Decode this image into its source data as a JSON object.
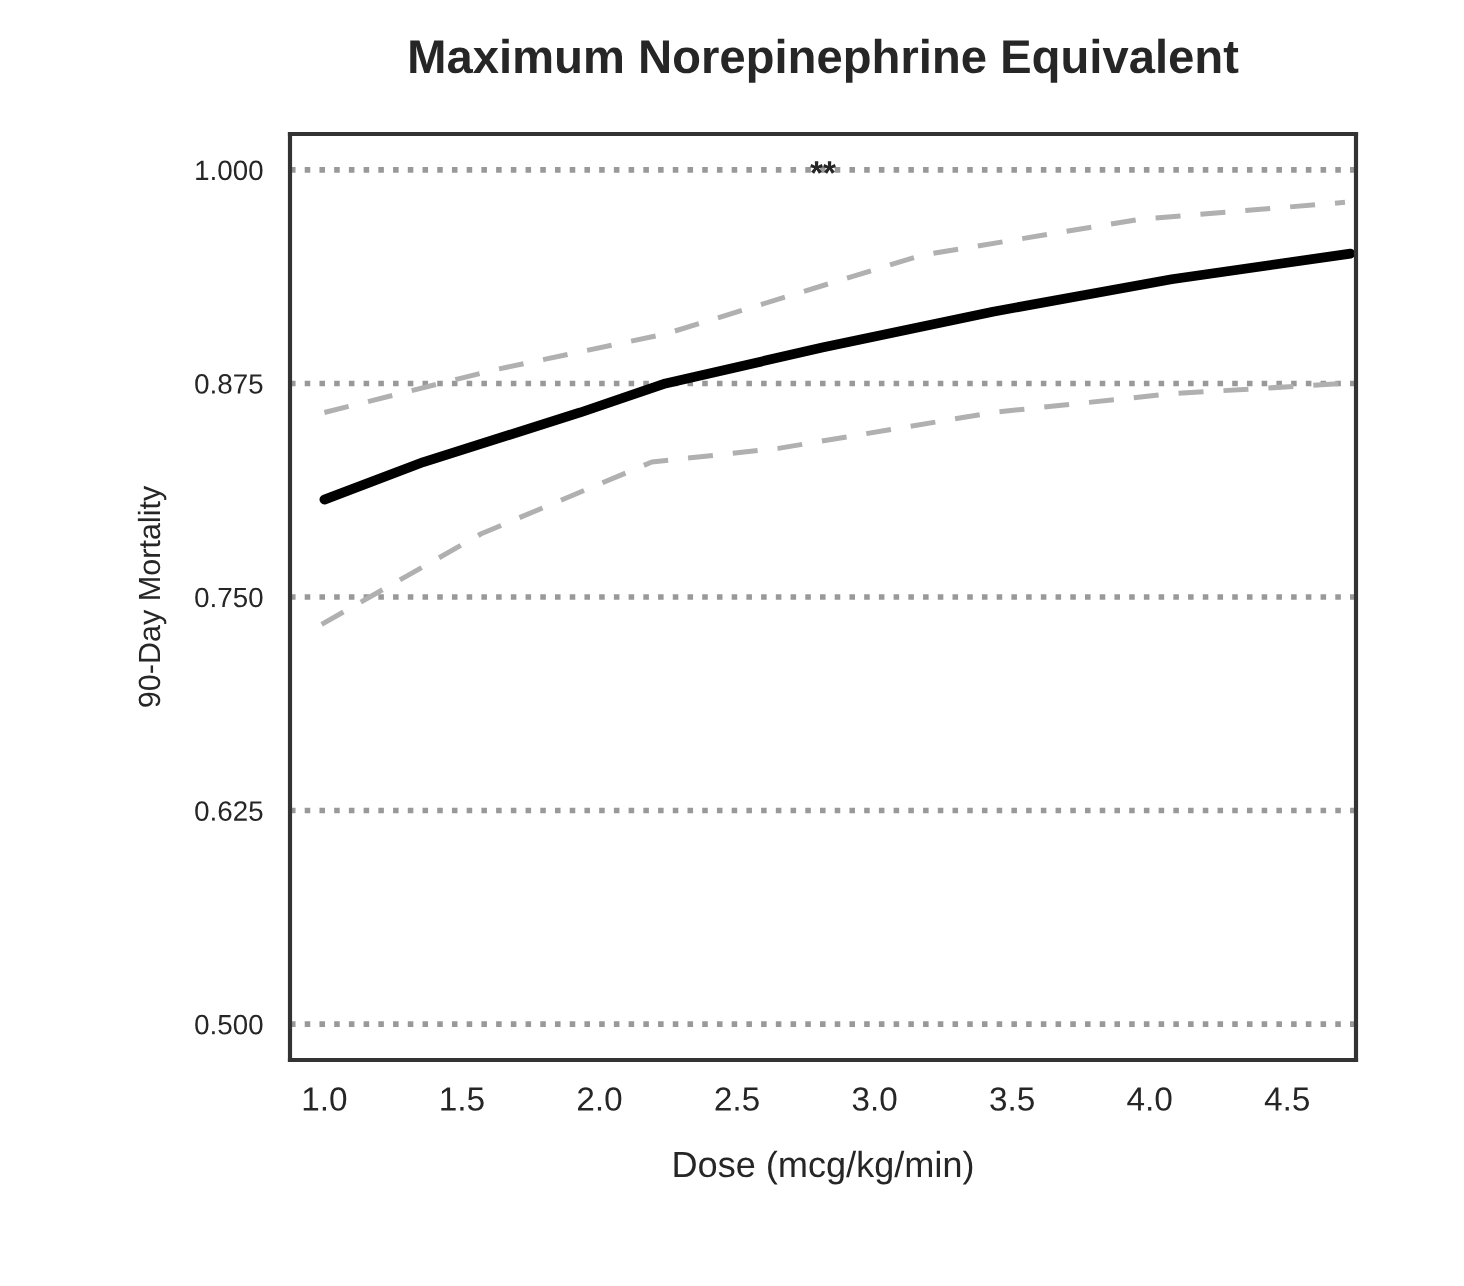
{
  "chart_data": {
    "type": "line",
    "title": "Maximum Norepinephrine Equivalent",
    "xlabel": "Dose (mcg/kg/min)",
    "ylabel": "90-Day Mortality",
    "series": [
      {
        "color": "#000000",
        "line_style": "solid",
        "x": [
          1.0,
          1.36,
          1.93,
          2.24,
          2.81,
          3.43,
          4.08,
          4.73
        ],
        "values": [
          0.807,
          0.829,
          0.858,
          0.875,
          0.896,
          0.917,
          0.936,
          0.951
        ]
      },
      {
        "color": "#b0b0b0",
        "line_style": "dashed",
        "x": [
          1.0,
          1.62,
          2.24,
          3.17,
          3.96,
          4.71
        ],
        "values": [
          0.858,
          0.883,
          0.904,
          0.95,
          0.971,
          0.981
        ]
      },
      {
        "color": "#b0b0b0",
        "line_style": "dashed",
        "x": [
          0.99,
          1.57,
          2.19,
          2.65,
          3.43,
          4.08,
          4.71
        ],
        "values": [
          0.734,
          0.787,
          0.829,
          0.837,
          0.858,
          0.869,
          0.875
        ]
      }
    ],
    "annotations": [
      "**"
    ],
    "xlim": [
      0.875,
      4.75
    ],
    "xticks": [
      {
        "value": 1.0,
        "label": "1.0"
      },
      1.5,
      {
        "value": 2.0,
        "label": "2.0"
      },
      2.5,
      {
        "value": 3.0,
        "label": "3.0"
      },
      3.5,
      {
        "value": 4.0,
        "label": "4.0"
      },
      4.5
    ],
    "ylim": [
      0.479,
      1.021
    ],
    "yticks": [
      {
        "value": 0.5,
        "label": "0.500"
      },
      {
        "value": 0.625,
        "label": "0.625"
      },
      {
        "value": 0.75,
        "label": "0.750"
      },
      {
        "value": 0.875,
        "label": "0.875"
      },
      {
        "value": 1.0,
        "label": "1.000"
      }
    ],
    "grid": "y",
    "marker": "none"
  }
}
